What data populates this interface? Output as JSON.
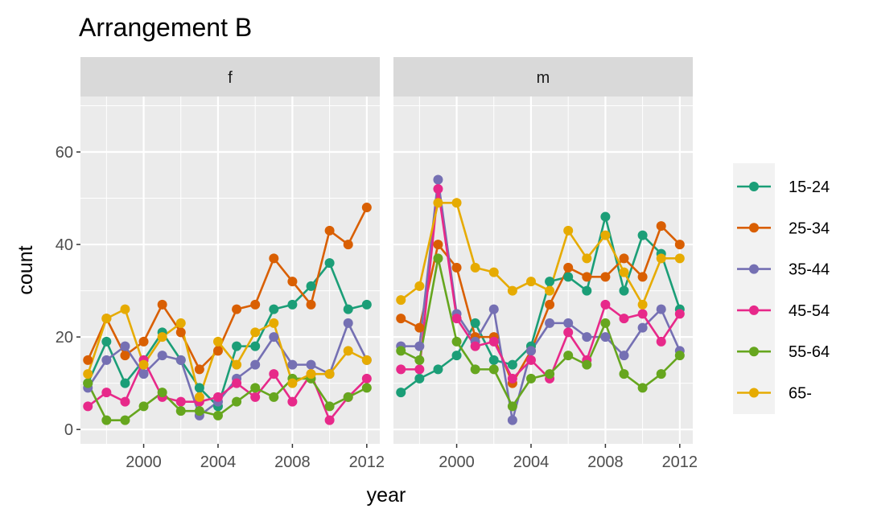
{
  "chart_data": {
    "type": "line",
    "title": "Arrangement B",
    "xlabel": "year",
    "ylabel": "count",
    "xlim": [
      1996.6,
      2012.7
    ],
    "ylim": [
      -3.1,
      72
    ],
    "x_ticks": [
      2000,
      2004,
      2008,
      2012
    ],
    "y_ticks": [
      0,
      20,
      40,
      60
    ],
    "grid": true,
    "legend_position": "right",
    "x": [
      1997,
      1998,
      1999,
      2000,
      2001,
      2002,
      2003,
      2004,
      2005,
      2006,
      2007,
      2008,
      2009,
      2010,
      2011,
      2012
    ],
    "legend": [
      {
        "name": "15-24",
        "color": "#1B9E77"
      },
      {
        "name": "25-34",
        "color": "#D95F02"
      },
      {
        "name": "35-44",
        "color": "#7570B3"
      },
      {
        "name": "45-54",
        "color": "#E7298A"
      },
      {
        "name": "55-64",
        "color": "#66A61E"
      },
      {
        "name": "65-",
        "color": "#E6AB02"
      }
    ],
    "panels": [
      {
        "label": "f",
        "series": [
          {
            "name": "15-24",
            "values": [
              10,
              19,
              10,
              15,
              21,
              15,
              9,
              5,
              18,
              18,
              26,
              27,
              31,
              36,
              26,
              27
            ]
          },
          {
            "name": "25-34",
            "values": [
              15,
              24,
              16,
              19,
              27,
              21,
              13,
              17,
              26,
              27,
              37,
              32,
              27,
              43,
              40,
              48
            ]
          },
          {
            "name": "35-44",
            "values": [
              9,
              15,
              18,
              12,
              16,
              15,
              3,
              6,
              11,
              14,
              20,
              14,
              14,
              12,
              23,
              15
            ]
          },
          {
            "name": "45-54",
            "values": [
              5,
              8,
              6,
              15,
              7,
              6,
              6,
              7,
              10,
              7,
              12,
              6,
              12,
              2,
              7,
              11
            ]
          },
          {
            "name": "55-64",
            "values": [
              10,
              2,
              2,
              5,
              8,
              4,
              4,
              3,
              6,
              9,
              7,
              11,
              11,
              5,
              7,
              9
            ]
          },
          {
            "name": "65-",
            "values": [
              12,
              24,
              26,
              14,
              20,
              23,
              7,
              19,
              14,
              21,
              23,
              10,
              12,
              12,
              17,
              15
            ]
          }
        ]
      },
      {
        "label": "m",
        "series": [
          {
            "name": "15-24",
            "values": [
              8,
              11,
              13,
              16,
              23,
              15,
              14,
              18,
              32,
              33,
              30,
              46,
              30,
              42,
              38,
              26
            ]
          },
          {
            "name": "25-34",
            "values": [
              24,
              22,
              40,
              35,
              20,
              20,
              10,
              17,
              27,
              35,
              33,
              33,
              37,
              33,
              44,
              40
            ]
          },
          {
            "name": "35-44",
            "values": [
              18,
              18,
              54,
              25,
              19,
              26,
              2,
              17,
              23,
              23,
              20,
              20,
              16,
              22,
              26,
              17
            ]
          },
          {
            "name": "45-54",
            "values": [
              13,
              13,
              52,
              24,
              18,
              19,
              11,
              15,
              11,
              21,
              15,
              27,
              24,
              25,
              19,
              25
            ]
          },
          {
            "name": "55-64",
            "values": [
              17,
              15,
              37,
              19,
              13,
              13,
              5,
              11,
              12,
              16,
              14,
              23,
              12,
              9,
              12,
              16
            ]
          },
          {
            "name": "65-",
            "values": [
              28,
              31,
              49,
              49,
              35,
              34,
              30,
              32,
              30,
              43,
              37,
              42,
              34,
              27,
              37,
              37
            ]
          }
        ]
      }
    ]
  }
}
